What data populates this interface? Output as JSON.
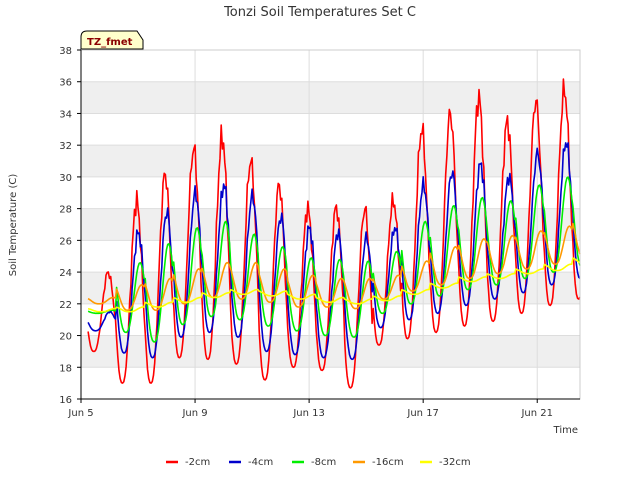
{
  "chart_data": {
    "type": "line",
    "title": "Tonzi Soil Temperatures Set C",
    "xlabel": "Time",
    "ylabel": "Soil Temperature (C)",
    "badge": "TZ_fmet",
    "x_start": "Jun 5",
    "x_end_day": 22.5,
    "ylim": [
      16,
      38
    ],
    "yticks": [
      16,
      18,
      20,
      22,
      24,
      26,
      28,
      30,
      32,
      34,
      36,
      38
    ],
    "xticks": [
      {
        "label": "Jun 5",
        "day": 5
      },
      {
        "label": "Jun 9",
        "day": 9
      },
      {
        "label": "Jun 13",
        "day": 13
      },
      {
        "label": "Jun 17",
        "day": 17
      },
      {
        "label": "Jun 21",
        "day": 21
      }
    ],
    "grid": true,
    "legend_position": "bottom",
    "samples_per_day": 24,
    "series": [
      {
        "name": "-2cm",
        "color": "#ff0000",
        "daily_min": [
          19.0,
          17.0,
          17.0,
          18.6,
          18.5,
          18.2,
          17.2,
          18.0,
          17.8,
          16.7,
          19.4,
          19.8,
          20.2,
          20.6,
          20.9,
          21.4,
          21.9,
          22.3,
          22.8
        ],
        "daily_max": [
          24.0,
          28.5,
          30.2,
          31.8,
          32.5,
          31.0,
          29.5,
          28.0,
          28.1,
          28.0,
          28.5,
          33.0,
          34.0,
          35.0,
          33.5,
          34.8,
          35.5,
          36.0,
          36.2
        ]
      },
      {
        "name": "-4cm",
        "color": "#0000cc",
        "daily_min": [
          20.3,
          18.9,
          18.6,
          19.9,
          20.2,
          19.9,
          19.0,
          18.8,
          18.6,
          18.5,
          20.5,
          21.0,
          21.4,
          21.9,
          22.3,
          22.7,
          23.2,
          23.6,
          24.0
        ],
        "daily_max": [
          21.5,
          26.5,
          27.8,
          29.0,
          29.5,
          28.8,
          27.5,
          26.8,
          26.5,
          26.2,
          26.8,
          29.5,
          30.3,
          30.8,
          30.0,
          31.5,
          32.2,
          32.5,
          32.8
        ]
      },
      {
        "name": "-8cm",
        "color": "#00ee00",
        "daily_min": [
          21.4,
          20.2,
          19.6,
          20.7,
          21.2,
          21.0,
          20.6,
          20.3,
          20.0,
          19.9,
          21.4,
          22.0,
          22.5,
          22.9,
          23.2,
          23.6,
          24.0,
          24.3,
          24.9
        ],
        "daily_max": [
          21.6,
          24.6,
          25.8,
          26.8,
          27.2,
          26.4,
          25.6,
          24.9,
          24.8,
          24.7,
          25.3,
          27.2,
          28.2,
          28.7,
          28.5,
          29.5,
          30.0,
          30.3,
          30.5
        ]
      },
      {
        "name": "-16cm",
        "color": "#ff9900",
        "daily_min": [
          22.0,
          21.6,
          21.6,
          22.0,
          22.4,
          22.3,
          22.1,
          21.8,
          21.8,
          21.7,
          22.3,
          22.8,
          23.2,
          23.6,
          23.9,
          24.2,
          24.5,
          24.9,
          25.3
        ],
        "daily_max": [
          22.4,
          23.2,
          23.6,
          24.2,
          24.6,
          24.6,
          24.2,
          23.8,
          23.6,
          23.6,
          23.8,
          24.7,
          25.6,
          26.1,
          26.3,
          26.6,
          26.9,
          27.5,
          27.8
        ]
      },
      {
        "name": "-32cm",
        "color": "#ffff00",
        "daily_min": [
          21.5,
          21.5,
          21.8,
          22.1,
          22.4,
          22.6,
          22.5,
          22.3,
          22.1,
          22.0,
          22.2,
          22.6,
          23.0,
          23.4,
          23.6,
          23.9,
          24.1,
          24.5,
          24.9
        ],
        "daily_max": [
          21.7,
          21.8,
          22.1,
          22.4,
          22.7,
          22.9,
          22.8,
          22.6,
          22.4,
          22.3,
          22.5,
          22.9,
          23.3,
          23.7,
          23.9,
          24.2,
          24.5,
          24.9,
          25.3
        ]
      }
    ]
  }
}
